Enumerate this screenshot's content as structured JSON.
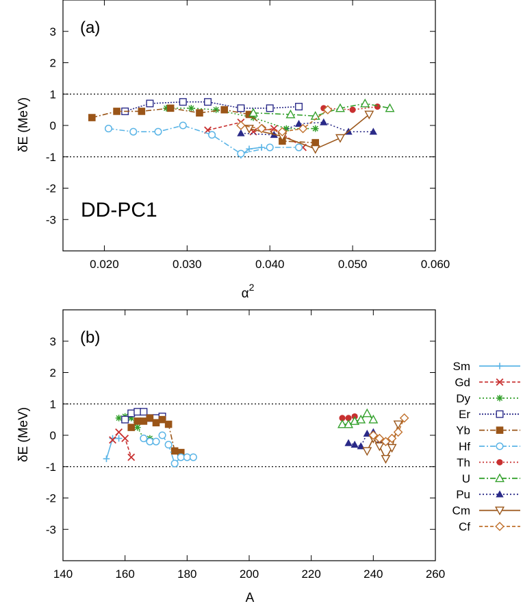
{
  "panels": [
    {
      "label": "(a)",
      "annotation": "DD-PC1",
      "xlabel_main": "α",
      "xlabel_sup": "2",
      "ylabel": "δE (MeV)",
      "xlim": [
        0.015,
        0.06
      ],
      "ylim": [
        -4,
        4
      ],
      "xticks": [
        "0.020",
        "0.030",
        "0.040",
        "0.050",
        "0.060"
      ],
      "xtick_values": [
        0.02,
        0.03,
        0.04,
        0.05,
        0.06
      ],
      "yticks": [
        "3",
        "2",
        "1",
        "0",
        "-1",
        "-2",
        "-3"
      ],
      "ytick_values": [
        3,
        2,
        1,
        0,
        -1,
        -2,
        -3
      ],
      "reference_lines": [
        1,
        -1
      ]
    },
    {
      "label": "(b)",
      "xlabel": "A",
      "ylabel": "δE (MeV)",
      "xlim": [
        140,
        260
      ],
      "ylim": [
        -4,
        4
      ],
      "xticks": [
        "140",
        "160",
        "180",
        "200",
        "220",
        "240",
        "260"
      ],
      "xtick_values": [
        140,
        160,
        180,
        200,
        220,
        240,
        260
      ],
      "yticks": [
        "3",
        "2",
        "1",
        "0",
        "-1",
        "-2",
        "-3"
      ],
      "ytick_values": [
        3,
        2,
        1,
        0,
        -1,
        -2,
        -3
      ],
      "reference_lines": [
        1,
        -1
      ]
    }
  ],
  "legend": {
    "placement": "right of panel (b)",
    "entries": [
      "Sm",
      "Gd",
      "Dy",
      "Er",
      "Yb",
      "Hf",
      "Th",
      "U",
      "Pu",
      "Cm",
      "Cf"
    ]
  },
  "chart_data": [
    {
      "type": "line",
      "panel": "(a)",
      "xlabel": "α2",
      "ylabel": "δE (MeV)",
      "xlim": [
        0.015,
        0.06
      ],
      "ylim": [
        -4,
        4
      ],
      "series": [
        {
          "name": "Sm",
          "color": "#5ab4e6",
          "dash": "",
          "marker": "plus",
          "x": [
            0.0365,
            0.0375,
            0.039
          ],
          "y": [
            -0.95,
            -0.75,
            -0.7
          ]
        },
        {
          "name": "Gd",
          "color": "#c83030",
          "dash": "5 3",
          "marker": "x",
          "x": [
            0.0325,
            0.0365,
            0.038,
            0.0405,
            0.044
          ],
          "y": [
            -0.15,
            0.1,
            -0.2,
            -0.1,
            -0.7
          ]
        },
        {
          "name": "Dy",
          "color": "#33a02c",
          "dash": "2 3",
          "marker": "star",
          "x": [
            0.0275,
            0.0305,
            0.0335,
            0.038,
            0.042,
            0.0455
          ],
          "y": [
            0.55,
            0.55,
            0.5,
            0.25,
            -0.1,
            -0.1
          ]
        },
        {
          "name": "Er",
          "color": "#2a2a88",
          "dash": "2 2",
          "marker": "square",
          "x": [
            0.0225,
            0.0255,
            0.0295,
            0.0325,
            0.0365,
            0.04,
            0.0435
          ],
          "y": [
            0.45,
            0.7,
            0.75,
            0.75,
            0.55,
            0.55,
            0.6
          ]
        },
        {
          "name": "Yb",
          "color": "#9a5518",
          "dash": "8 3 2 3",
          "marker": "fsquare",
          "x": [
            0.0185,
            0.0215,
            0.0245,
            0.028,
            0.0315,
            0.0345,
            0.0375,
            0.0415,
            0.0455
          ],
          "y": [
            0.25,
            0.45,
            0.45,
            0.55,
            0.4,
            0.5,
            0.35,
            -0.5,
            -0.55
          ]
        },
        {
          "name": "Hf",
          "color": "#5ab4e6",
          "dash": "8 3 2 3",
          "marker": "circle",
          "x": [
            0.0205,
            0.0235,
            0.0265,
            0.0295,
            0.033,
            0.0365,
            0.04,
            0.0435
          ],
          "y": [
            -0.1,
            -0.2,
            -0.2,
            0.0,
            -0.3,
            -0.9,
            -0.7,
            -0.7
          ]
        },
        {
          "name": "Th",
          "color": "#c83030",
          "dash": "2 3",
          "marker": "fcircle",
          "x": [
            0.0465,
            0.05,
            0.053
          ],
          "y": [
            0.55,
            0.5,
            0.6
          ]
        },
        {
          "name": "U",
          "color": "#33a02c",
          "dash": "8 3 2 3",
          "marker": "triangle",
          "x": [
            0.038,
            0.0425,
            0.0455,
            0.0485,
            0.0515,
            0.0545
          ],
          "y": [
            0.4,
            0.35,
            0.3,
            0.55,
            0.7,
            0.55
          ]
        },
        {
          "name": "Pu",
          "color": "#2a2a88",
          "dash": "2 3",
          "marker": "ftriangle",
          "x": [
            0.0365,
            0.0405,
            0.0435,
            0.0465,
            0.0495,
            0.0525
          ],
          "y": [
            -0.25,
            -0.3,
            0.05,
            0.1,
            -0.2,
            -0.2
          ]
        },
        {
          "name": "Cm",
          "color": "#9a5518",
          "dash": "",
          "marker": "tridown",
          "x": [
            0.0375,
            0.0415,
            0.0455,
            0.0485,
            0.052
          ],
          "y": [
            -0.1,
            -0.35,
            -0.75,
            -0.4,
            0.35
          ]
        },
        {
          "name": "Cf",
          "color": "#c0702c",
          "dash": "5 3",
          "marker": "diamond",
          "x": [
            0.0365,
            0.039,
            0.0415,
            0.044,
            0.047
          ],
          "y": [
            0.0,
            -0.1,
            -0.2,
            -0.1,
            0.5
          ]
        }
      ]
    },
    {
      "type": "line",
      "panel": "(b)",
      "xlabel": "A",
      "ylabel": "δE (MeV)",
      "xlim": [
        140,
        260
      ],
      "ylim": [
        -4,
        4
      ],
      "series": [
        {
          "name": "Sm",
          "color": "#5ab4e6",
          "dash": "",
          "marker": "plus",
          "x": [
            154,
            156,
            158
          ],
          "y": [
            -0.75,
            -0.1,
            -0.1
          ]
        },
        {
          "name": "Gd",
          "color": "#c83030",
          "dash": "5 3",
          "marker": "x",
          "x": [
            156,
            158,
            160,
            162
          ],
          "y": [
            -0.15,
            0.1,
            -0.1,
            -0.7
          ]
        },
        {
          "name": "Dy",
          "color": "#33a02c",
          "dash": "2 3",
          "marker": "star",
          "x": [
            158,
            160,
            162,
            164,
            166,
            168
          ],
          "y": [
            0.55,
            0.6,
            0.55,
            0.25,
            -0.1,
            -0.1
          ]
        },
        {
          "name": "Er",
          "color": "#2a2a88",
          "dash": "2 2",
          "marker": "square",
          "x": [
            160,
            162,
            164,
            166,
            168,
            170,
            172
          ],
          "y": [
            0.5,
            0.7,
            0.75,
            0.75,
            0.55,
            0.55,
            0.6
          ]
        },
        {
          "name": "Yb",
          "color": "#9a5518",
          "dash": "8 3 2 3",
          "marker": "fsquare",
          "x": [
            162,
            164,
            166,
            168,
            170,
            172,
            174,
            176,
            178
          ],
          "y": [
            0.25,
            0.45,
            0.45,
            0.55,
            0.4,
            0.5,
            0.35,
            -0.5,
            -0.55
          ]
        },
        {
          "name": "Hf",
          "color": "#5ab4e6",
          "dash": "8 3 2 3",
          "marker": "circle",
          "x": [
            166,
            168,
            170,
            172,
            174,
            176,
            178,
            180,
            182
          ],
          "y": [
            -0.1,
            -0.2,
            -0.2,
            0.0,
            -0.3,
            -0.9,
            -0.7,
            -0.7,
            -0.7
          ]
        },
        {
          "name": "Th",
          "color": "#c83030",
          "dash": "2 3",
          "marker": "fcircle",
          "x": [
            230,
            232,
            234
          ],
          "y": [
            0.55,
            0.55,
            0.6
          ]
        },
        {
          "name": "U",
          "color": "#33a02c",
          "dash": "8 3 2 3",
          "marker": "triangle",
          "x": [
            230,
            232,
            234,
            236,
            238,
            240
          ],
          "y": [
            0.35,
            0.35,
            0.45,
            0.5,
            0.7,
            0.5
          ]
        },
        {
          "name": "Pu",
          "color": "#2a2a88",
          "dash": "2 3",
          "marker": "ftriangle",
          "x": [
            232,
            234,
            236,
            238,
            240,
            242,
            244
          ],
          "y": [
            -0.25,
            -0.3,
            -0.35,
            0.05,
            0.1,
            -0.2,
            -0.2
          ]
        },
        {
          "name": "Cm",
          "color": "#9a5518",
          "dash": "",
          "marker": "tridown",
          "x": [
            238,
            240,
            242,
            244,
            246,
            248
          ],
          "y": [
            -0.5,
            -0.1,
            -0.35,
            -0.75,
            -0.4,
            0.35
          ]
        },
        {
          "name": "Cf",
          "color": "#c0702c",
          "dash": "5 3",
          "marker": "diamond",
          "x": [
            240,
            242,
            244,
            246,
            248,
            250
          ],
          "y": [
            0.0,
            -0.1,
            -0.2,
            -0.1,
            0.1,
            0.55
          ]
        }
      ]
    }
  ]
}
